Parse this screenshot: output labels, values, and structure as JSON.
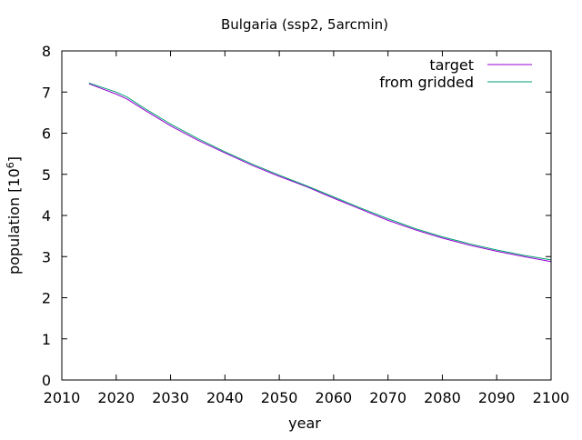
{
  "chart_data": {
    "type": "line",
    "title": "Bulgaria (ssp2, 5arcmin)",
    "xlabel": "year",
    "ylabel": "population [10",
    "ylabel_sup": "6",
    "ylabel_end": "]",
    "xlim": [
      2010,
      2100
    ],
    "ylim": [
      0,
      8
    ],
    "xticks": [
      "2010",
      "2020",
      "2030",
      "2040",
      "2050",
      "2060",
      "2070",
      "2080",
      "2090",
      "2100"
    ],
    "yticks": [
      "0",
      "1",
      "2",
      "3",
      "4",
      "5",
      "6",
      "7",
      "8"
    ],
    "grid": false,
    "legend_position": "top-right",
    "series": [
      {
        "name": "target",
        "color": "#9400d3",
        "x": [
          2015,
          2020,
          2022,
          2025,
          2030,
          2035,
          2040,
          2045,
          2050,
          2055,
          2060,
          2065,
          2070,
          2075,
          2080,
          2085,
          2090,
          2095,
          2100
        ],
        "y": [
          7.2,
          6.95,
          6.83,
          6.58,
          6.18,
          5.83,
          5.52,
          5.22,
          4.95,
          4.7,
          4.42,
          4.15,
          3.88,
          3.65,
          3.45,
          3.28,
          3.13,
          3.0,
          2.88
        ]
      },
      {
        "name": "from gridded",
        "color": "#009e73",
        "x": [
          2015,
          2020,
          2022,
          2025,
          2030,
          2035,
          2040,
          2045,
          2050,
          2055,
          2060,
          2065,
          2070,
          2075,
          2080,
          2085,
          2090,
          2095,
          2100
        ],
        "y": [
          7.22,
          7.0,
          6.88,
          6.62,
          6.22,
          5.87,
          5.55,
          5.25,
          4.98,
          4.72,
          4.45,
          4.18,
          3.92,
          3.68,
          3.48,
          3.31,
          3.16,
          3.03,
          2.92
        ]
      }
    ]
  }
}
